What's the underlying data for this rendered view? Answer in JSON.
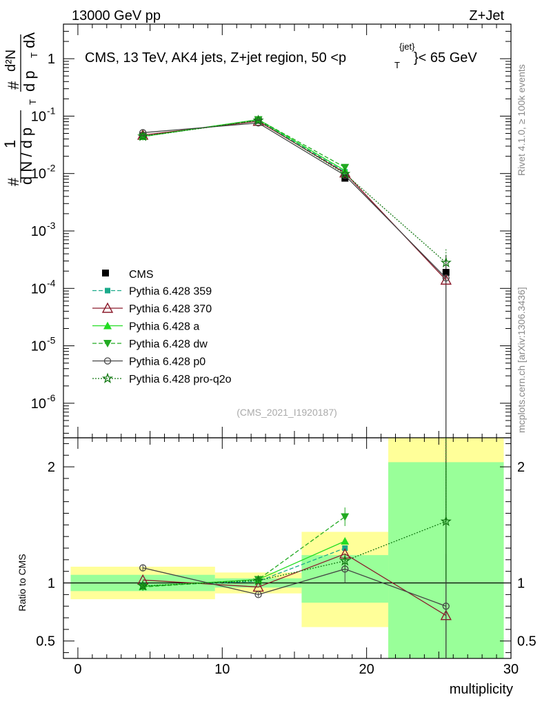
{
  "header": {
    "left": "13000 GeV pp",
    "right": "Z+Jet"
  },
  "side_labels": {
    "rivet": "Rivet 4.1.0, ≥ 100k events",
    "mcplots": "mcplots.cern.ch [arXiv:1306.3436]"
  },
  "chart_data": {
    "type": "line",
    "title": "CMS, 13 TeV, AK4 jets, Z+jet region, 50 <p",
    "title_sup": "{jet}",
    "title_sub": "T",
    "title_end": "}< 65 GeV",
    "watermark": "(CMS_2021_I1920187)",
    "xlabel": "multiplicity",
    "ylabel_ratio": "Ratio to CMS",
    "ylabel_main_parts": [
      "#",
      "1",
      "d N / d p",
      "T",
      "#",
      "d²N",
      "d p",
      "T",
      "dλ"
    ],
    "xlim": [
      -1,
      30
    ],
    "ylim_main_log": [
      2.5e-07,
      4
    ],
    "ylim_ratio": [
      0.35,
      2.25
    ],
    "x_ticks": [
      0,
      10,
      20,
      30
    ],
    "y_ticks_main": [
      {
        "value": 1,
        "label": "1"
      },
      {
        "value": 0.1,
        "label": "10",
        "sup": "-1"
      },
      {
        "value": 0.01,
        "label": "10",
        "sup": "-2"
      },
      {
        "value": 0.001,
        "label": "10",
        "sup": "-3"
      },
      {
        "value": 0.0001,
        "label": "10",
        "sup": "-4"
      },
      {
        "value": 1e-05,
        "label": "10",
        "sup": "-5"
      },
      {
        "value": 1e-06,
        "label": "10",
        "sup": "-6"
      }
    ],
    "y_ticks_ratio": [
      {
        "value": 2,
        "label": "2"
      },
      {
        "value": 1,
        "label": "1"
      },
      {
        "value": 0.5,
        "label": "0.5"
      }
    ],
    "bins": [
      [
        -0.5,
        9.5
      ],
      [
        9.5,
        15.5
      ],
      [
        15.5,
        21.5
      ],
      [
        21.5,
        29.5
      ]
    ],
    "x": [
      4.5,
      12.5,
      18.5,
      25.5
    ],
    "data": {
      "name": "CMS",
      "values": [
        0.0455,
        0.0845,
        0.0083,
        0.00019
      ],
      "errors_low": [
        0.002,
        0.003,
        0.0007,
        0.00019
      ],
      "errors_high": [
        0.002,
        0.003,
        0.0007,
        0.00019
      ]
    },
    "band_stat_ratio": [
      [
        0.93,
        1.07
      ],
      [
        0.96,
        1.04
      ],
      [
        0.83,
        1.24
      ],
      [
        0.35,
        2.04
      ]
    ],
    "band_total_ratio": [
      [
        0.86,
        1.14
      ],
      [
        0.91,
        1.09
      ],
      [
        0.62,
        1.44
      ],
      [
        0.35,
        2.25
      ]
    ],
    "series": [
      {
        "name": "Pythia 6.428 359",
        "color": "#1aaa8a",
        "dash": "6,3",
        "marker": "square",
        "values": [
          0.0445,
          0.0855,
          0.0107,
          null
        ],
        "ratio": [
          0.975,
          1.015,
          1.3,
          null
        ]
      },
      {
        "name": "Pythia 6.428 370",
        "color": "#8b1a2b",
        "dash": "",
        "marker": "triangle-open",
        "values": [
          0.0468,
          0.0815,
          0.0103,
          0.00014
        ],
        "ratio": [
          1.025,
          0.965,
          1.25,
          0.72
        ],
        "ratio_err": [
          0,
          0,
          0,
          0
        ]
      },
      {
        "name": "Pythia 6.428 a",
        "color": "#22dd22",
        "dash": "",
        "marker": "triangle",
        "values": [
          0.0442,
          0.0872,
          0.0113,
          null
        ],
        "ratio": [
          0.97,
          1.03,
          1.36,
          null
        ]
      },
      {
        "name": "Pythia 6.428 dw",
        "color": "#22aa22",
        "dash": "6,3",
        "marker": "triangle-down",
        "values": [
          0.044,
          0.0868,
          0.0128,
          null
        ],
        "ratio": [
          0.965,
          1.03,
          1.57,
          null
        ],
        "ratio_err": [
          0.02,
          0.02,
          0.08,
          0
        ]
      },
      {
        "name": "Pythia 6.428 p0",
        "color": "#444444",
        "dash": "",
        "marker": "circle-open",
        "values": [
          0.0515,
          0.076,
          0.0093,
          0.000152
        ],
        "ratio": [
          1.13,
          0.9,
          1.12,
          0.8
        ],
        "ratio_err": [
          0.03,
          0.02,
          0.12,
          0.45
        ]
      },
      {
        "name": "Pythia 6.428 pro-q2o",
        "color": "#117711",
        "dash": "2,2",
        "marker": "star",
        "values": [
          0.0445,
          0.084,
          0.0099,
          0.00028
        ],
        "ratio": [
          0.975,
          1.02,
          1.19,
          1.53
        ],
        "ratio_err": [
          0.015,
          0.02,
          0.06,
          0.5
        ]
      }
    ]
  }
}
